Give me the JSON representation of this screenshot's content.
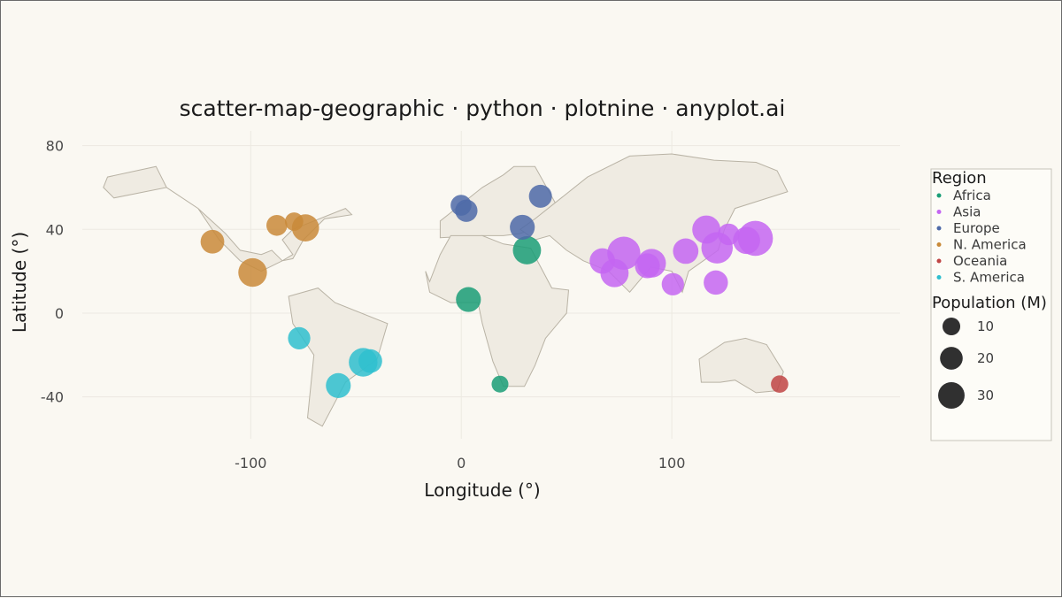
{
  "chart_data": {
    "type": "scatter",
    "title": "scatter-map-geographic · python · plotnine · anyplot.ai",
    "xlabel": "Longitude (°)",
    "ylabel": "Latitude (°)",
    "xlim": [
      -180,
      200
    ],
    "ylim": [
      -60,
      87
    ],
    "x_ticks": [
      -100,
      0,
      100
    ],
    "x_tick_labels": [
      "-100",
      "0",
      "100"
    ],
    "y_ticks": [
      -40,
      0,
      40,
      80
    ],
    "y_tick_labels": [
      "-40",
      "0",
      "40",
      "80"
    ],
    "grid": true,
    "legend_position": "right",
    "color_legend_title": "Region",
    "size_legend_title": "Population (M)",
    "size_legend": [
      {
        "value": 10,
        "label": "10"
      },
      {
        "value": 20,
        "label": "20"
      },
      {
        "value": 30,
        "label": "30"
      }
    ],
    "series": [
      {
        "name": "Africa",
        "color": "#1a9e77",
        "points": [
          [
            31.2,
            30.0,
            21.0
          ],
          [
            3.4,
            6.5,
            15.0
          ],
          [
            18.4,
            -33.9,
            4.5
          ]
        ]
      },
      {
        "name": "Asia",
        "color": "#c466f2",
        "points": [
          [
            139.7,
            35.7,
            37.0
          ],
          [
            77.2,
            28.6,
            32.0
          ],
          [
            121.5,
            31.2,
            28.0
          ],
          [
            116.4,
            39.9,
            21.0
          ],
          [
            72.8,
            19.1,
            21.0
          ],
          [
            88.4,
            22.6,
            15.0
          ],
          [
            90.4,
            23.8,
            22.0
          ],
          [
            67.0,
            24.9,
            16.0
          ],
          [
            106.6,
            29.6,
            16.0
          ],
          [
            120.9,
            14.6,
            14.0
          ],
          [
            100.5,
            13.8,
            11.0
          ],
          [
            127.0,
            37.6,
            10.0
          ],
          [
            135.5,
            34.7,
            19.0
          ]
        ]
      },
      {
        "name": "Europe",
        "color": "#4e6aa8",
        "points": [
          [
            29.0,
            41.0,
            15.0
          ],
          [
            37.6,
            55.8,
            12.0
          ],
          [
            -0.1,
            51.5,
            9.0
          ],
          [
            2.4,
            48.9,
            11.0
          ]
        ]
      },
      {
        "name": "N. America",
        "color": "#c98a3a",
        "points": [
          [
            -99.1,
            19.4,
            22.0
          ],
          [
            -74.0,
            40.7,
            19.0
          ],
          [
            -118.2,
            34.1,
            13.0
          ],
          [
            -87.6,
            41.9,
            9.0
          ],
          [
            -79.4,
            43.7,
            6.0
          ]
        ]
      },
      {
        "name": "Oceania",
        "color": "#c04545",
        "points": [
          [
            151.2,
            -33.9,
            5.0
          ]
        ]
      },
      {
        "name": "S. America",
        "color": "#2fbfcf",
        "points": [
          [
            -46.6,
            -23.5,
            22.0
          ],
          [
            -43.2,
            -22.9,
            13.0
          ],
          [
            -58.4,
            -34.6,
            15.0
          ],
          [
            -77.0,
            -12.0,
            11.0
          ]
        ]
      }
    ],
    "land": [
      [
        [
          -170,
          60
        ],
        [
          -165,
          55
        ],
        [
          -140,
          60
        ],
        [
          -125,
          50
        ],
        [
          -115,
          35
        ],
        [
          -105,
          25
        ],
        [
          -95,
          20
        ],
        [
          -85,
          25
        ],
        [
          -80,
          26
        ],
        [
          -75,
          35
        ],
        [
          -65,
          45
        ],
        [
          -52,
          47
        ],
        [
          -55,
          50
        ],
        [
          -80,
          40
        ],
        [
          -85,
          35
        ],
        [
          -80,
          28
        ],
        [
          -85,
          25
        ],
        [
          -90,
          30
        ],
        [
          -95,
          28
        ],
        [
          -105,
          30
        ],
        [
          -112,
          38
        ],
        [
          -125,
          50
        ],
        [
          -140,
          60
        ],
        [
          -145,
          70
        ],
        [
          -168,
          65
        ],
        [
          -170,
          60
        ]
      ],
      [
        [
          -82,
          8
        ],
        [
          -68,
          12
        ],
        [
          -60,
          5
        ],
        [
          -35,
          -5
        ],
        [
          -40,
          -22
        ],
        [
          -55,
          -33
        ],
        [
          -66,
          -54
        ],
        [
          -73,
          -50
        ],
        [
          -70,
          -20
        ],
        [
          -80,
          -5
        ],
        [
          -82,
          8
        ]
      ],
      [
        [
          -10,
          36
        ],
        [
          -10,
          44
        ],
        [
          0,
          52
        ],
        [
          10,
          60
        ],
        [
          20,
          66
        ],
        [
          25,
          70
        ],
        [
          35,
          70
        ],
        [
          45,
          52
        ],
        [
          40,
          42
        ],
        [
          28,
          38
        ],
        [
          20,
          37
        ],
        [
          10,
          37
        ],
        [
          -10,
          36
        ]
      ],
      [
        [
          -17,
          20
        ],
        [
          -15,
          15
        ],
        [
          -10,
          28
        ],
        [
          -5,
          37
        ],
        [
          10,
          37
        ],
        [
          20,
          33
        ],
        [
          33,
          31
        ],
        [
          43,
          12
        ],
        [
          51,
          11
        ],
        [
          50,
          0
        ],
        [
          40,
          -12
        ],
        [
          35,
          -25
        ],
        [
          30,
          -35
        ],
        [
          20,
          -35
        ],
        [
          15,
          -23
        ],
        [
          10,
          -5
        ],
        [
          8,
          5
        ],
        [
          -5,
          5
        ],
        [
          -15,
          10
        ],
        [
          -17,
          20
        ]
      ],
      [
        [
          28,
          40
        ],
        [
          35,
          45
        ],
        [
          60,
          65
        ],
        [
          80,
          75
        ],
        [
          100,
          76
        ],
        [
          120,
          73
        ],
        [
          140,
          72
        ],
        [
          150,
          68
        ],
        [
          155,
          58
        ],
        [
          130,
          50
        ],
        [
          125,
          40
        ],
        [
          122,
          30
        ],
        [
          108,
          20
        ],
        [
          105,
          10
        ],
        [
          100,
          20
        ],
        [
          90,
          22
        ],
        [
          80,
          10
        ],
        [
          70,
          20
        ],
        [
          58,
          25
        ],
        [
          50,
          30
        ],
        [
          42,
          37
        ],
        [
          35,
          35
        ],
        [
          28,
          40
        ]
      ],
      [
        [
          113,
          -22
        ],
        [
          114,
          -33
        ],
        [
          123,
          -33
        ],
        [
          130,
          -32
        ],
        [
          140,
          -38
        ],
        [
          150,
          -37
        ],
        [
          153,
          -28
        ],
        [
          145,
          -15
        ],
        [
          135,
          -12
        ],
        [
          125,
          -14
        ],
        [
          113,
          -22
        ]
      ]
    ]
  }
}
